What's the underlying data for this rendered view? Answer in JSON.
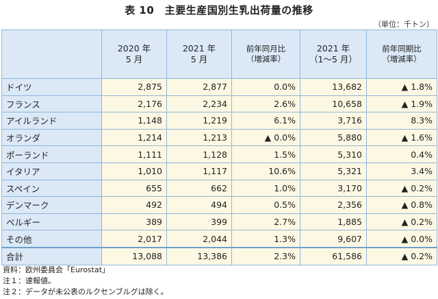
{
  "title": "表 10　主要生産国別生乳出荷量の推移",
  "unit": "（単位：千トン）",
  "columns": [
    "",
    "2020 年\n5 月",
    "2021 年\n5 月",
    "前年同月比\n（増減率）",
    "2021 年\n（1～5 月）",
    "前年同期比\n（増減率）"
  ],
  "rows": [
    {
      "country": "ドイツ",
      "v2020": "2,875",
      "v2021": "2,877",
      "yoy": "0.0%",
      "ytd": "13,682",
      "ytd_yoy": "▲ 1.8%"
    },
    {
      "country": "フランス",
      "v2020": "2,176",
      "v2021": "2,234",
      "yoy": "2.6%",
      "ytd": "10,658",
      "ytd_yoy": "▲ 1.9%"
    },
    {
      "country": "アイルランド",
      "v2020": "1,148",
      "v2021": "1,219",
      "yoy": "6.1%",
      "ytd": "3,716",
      "ytd_yoy": "8.3%"
    },
    {
      "country": "オランダ",
      "v2020": "1,214",
      "v2021": "1,213",
      "yoy": "▲ 0.0%",
      "ytd": "5,880",
      "ytd_yoy": "▲ 1.6%"
    },
    {
      "country": "ポーランド",
      "v2020": "1,111",
      "v2021": "1,128",
      "yoy": "1.5%",
      "ytd": "5,310",
      "ytd_yoy": "0.4%"
    },
    {
      "country": "イタリア",
      "v2020": "1,010",
      "v2021": "1,117",
      "yoy": "10.6%",
      "ytd": "5,321",
      "ytd_yoy": "3.4%"
    },
    {
      "country": "スペイン",
      "v2020": "655",
      "v2021": "662",
      "yoy": "1.0%",
      "ytd": "3,170",
      "ytd_yoy": "▲ 0.2%"
    },
    {
      "country": "デンマーク",
      "v2020": "492",
      "v2021": "494",
      "yoy": "0.5%",
      "ytd": "2,356",
      "ytd_yoy": "▲ 0.8%"
    },
    {
      "country": "ベルギー",
      "v2020": "389",
      "v2021": "399",
      "yoy": "2.7%",
      "ytd": "1,885",
      "ytd_yoy": "▲ 0.2%"
    },
    {
      "country": "その他",
      "v2020": "2,017",
      "v2021": "2,044",
      "yoy": "1.3%",
      "ytd": "9,607",
      "ytd_yoy": "▲ 0.0%"
    }
  ],
  "total": {
    "country": "合計",
    "v2020": "13,088",
    "v2021": "13,386",
    "yoy": "2.3%",
    "ytd": "61,586",
    "ytd_yoy": "▲ 0.2%"
  },
  "notes": [
    "資料：欧州委員会「Eurostat」",
    "注１：速報値。",
    "注２：データが未公表のルクセンブルグは除く。"
  ]
}
